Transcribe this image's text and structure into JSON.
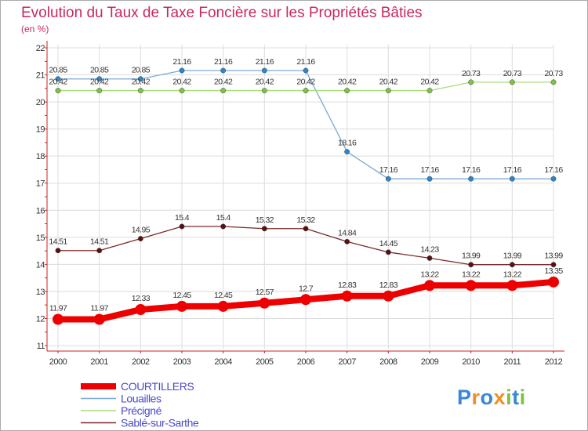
{
  "chart_data": {
    "type": "line",
    "title": "Evolution du Taux de Taxe Foncière sur les Propriétés Bâties",
    "unit_label": "(en %)",
    "x": [
      "2000",
      "2001",
      "2002",
      "2003",
      "2004",
      "2005",
      "2006",
      "2007",
      "2008",
      "2009",
      "2010",
      "2011",
      "2012"
    ],
    "ylim": [
      11,
      22
    ],
    "yticks": [
      11,
      12,
      13,
      14,
      15,
      16,
      17,
      18,
      19,
      20,
      21,
      22
    ],
    "grid": true,
    "series": [
      {
        "name": "Louailles",
        "color": "#7aaad8",
        "point_color": "#2e86c8",
        "values": [
          20.85,
          20.85,
          20.85,
          21.16,
          21.16,
          21.16,
          21.16,
          18.16,
          17.16,
          17.16,
          17.16,
          17.16,
          17.16
        ],
        "labels": [
          "20.85",
          "20.85",
          "20.85",
          "21.16",
          "21.16",
          "21.16",
          "21.16",
          "18.16",
          "17.16",
          "17.16",
          "17.16",
          "17.16",
          "17.16"
        ]
      },
      {
        "name": "Précigné",
        "color": "#a8dc78",
        "point_color": "#7cc444",
        "values": [
          20.42,
          20.42,
          20.42,
          20.42,
          20.42,
          20.42,
          20.42,
          20.42,
          20.42,
          20.42,
          20.73,
          20.73,
          20.73
        ],
        "labels": [
          "20.42",
          "20.42",
          "20.42",
          "20.42",
          "20.42",
          "20.42",
          "20.42",
          "20.42",
          "20.42",
          "20.42",
          "20.73",
          "20.73",
          "20.73"
        ]
      },
      {
        "name": "Sablé-sur-Sarthe",
        "color": "#7a2a2a",
        "point_color": "#5a1010",
        "values": [
          14.51,
          14.51,
          14.95,
          15.4,
          15.4,
          15.32,
          15.32,
          14.84,
          14.45,
          14.23,
          13.99,
          13.99,
          13.99
        ],
        "labels": [
          "14.51",
          "14.51",
          "14.95",
          "15.4",
          "15.4",
          "15.32",
          "15.32",
          "14.84",
          "14.45",
          "14.23",
          "13.99",
          "13.99",
          "13.99"
        ]
      },
      {
        "name": "COURTILLERS",
        "color": "#ee0000",
        "point_color": "#ee0000",
        "values": [
          11.97,
          11.97,
          12.33,
          12.45,
          12.45,
          12.57,
          12.7,
          12.83,
          12.83,
          13.22,
          13.22,
          13.22,
          13.35
        ],
        "labels": [
          "11.97",
          "11.97",
          "12.33",
          "12.45",
          "12.45",
          "12.57",
          "12.7",
          "12.83",
          "12.83",
          "13.22",
          "13.22",
          "13.22",
          "13.35"
        ]
      }
    ],
    "legend": [
      "COURTILLERS",
      "Louailles",
      "Précigné",
      "Sablé-sur-Sarthe"
    ]
  },
  "brand": {
    "logo_text": "Proxiti"
  },
  "colors": {
    "title": "#c8285a",
    "axis": "#cc2020",
    "legend_text": "#4a4ac8"
  }
}
